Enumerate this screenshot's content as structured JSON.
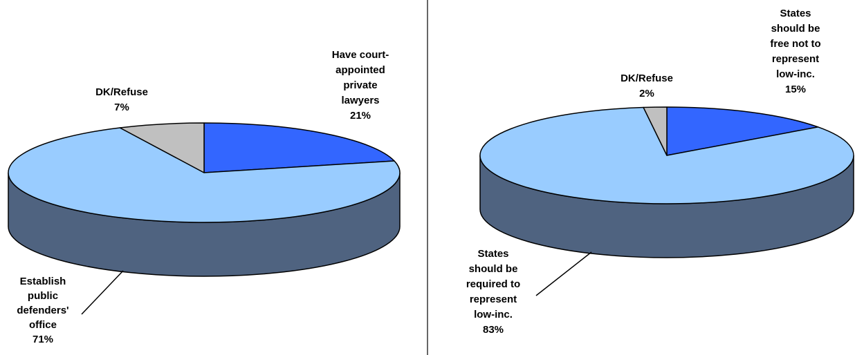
{
  "colors": {
    "blue_slice": "#3366ff",
    "light_slice": "#99ccff",
    "gray_slice": "#c0c0c0",
    "side_wall": "#4f6380",
    "divider": "#000000"
  },
  "chart_data": [
    {
      "type": "pie",
      "style": "3d",
      "slices": [
        {
          "label": [
            "Have court-",
            "appointed",
            "private",
            "lawyers"
          ],
          "value": 21,
          "pct_label": "21%",
          "color": "#3366ff"
        },
        {
          "label": [
            "Establish",
            "public",
            "defenders'",
            "office"
          ],
          "value": 71,
          "pct_label": "71%",
          "color": "#99ccff"
        },
        {
          "label": [
            "DK/Refuse"
          ],
          "value": 7,
          "pct_label": "7%",
          "color": "#c0c0c0"
        }
      ]
    },
    {
      "type": "pie",
      "style": "3d",
      "slices": [
        {
          "label": [
            "States",
            "should be",
            "free not to",
            "represent",
            "low-inc."
          ],
          "value": 15,
          "pct_label": "15%",
          "color": "#3366ff"
        },
        {
          "label": [
            "States",
            "should be",
            "required to",
            "represent",
            "low-inc."
          ],
          "value": 83,
          "pct_label": "83%",
          "color": "#99ccff"
        },
        {
          "label": [
            "DK/Refuse"
          ],
          "value": 2,
          "pct_label": "2%",
          "color": "#c0c0c0"
        }
      ]
    }
  ]
}
